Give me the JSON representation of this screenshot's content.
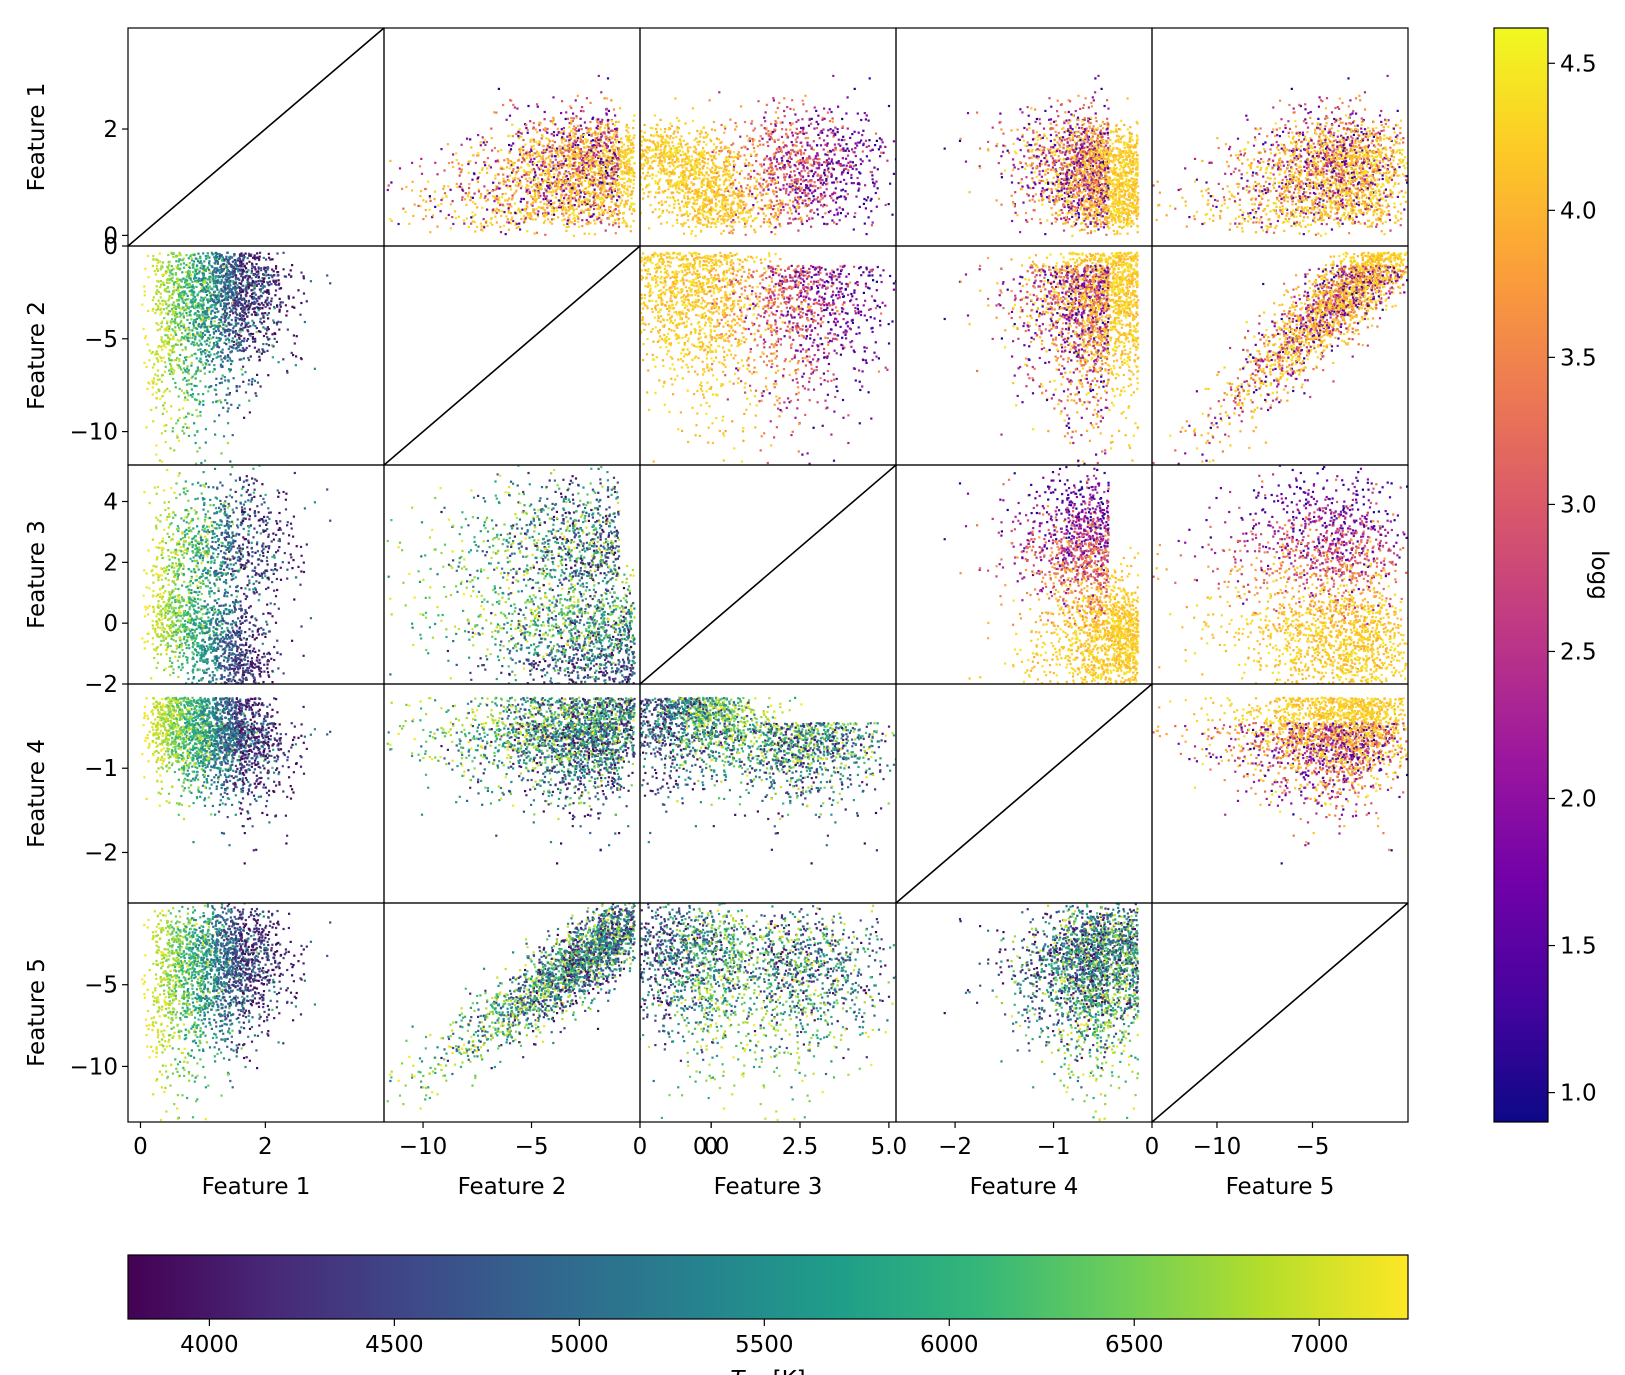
{
  "chart_data": {
    "type": "scatter",
    "subtype": "pair-plot matrix (corner plot)",
    "variables": [
      "Feature 1",
      "Feature 2",
      "Feature 3",
      "Feature 4",
      "Feature 5"
    ],
    "lower_triangle_color": "Teff",
    "upper_triangle_color": "logg",
    "diagonal": "identity line",
    "ranges": {
      "Feature 1": [
        -0.2,
        3.9
      ],
      "Feature 2": [
        -11.8,
        0.0
      ],
      "Feature 3": [
        -2.0,
        5.2
      ],
      "Feature 4": [
        -2.6,
        0.0
      ],
      "Feature 5": [
        -13.4,
        0.0
      ]
    },
    "ticks": {
      "y": {
        "Feature 1": [
          "0",
          "2"
        ],
        "Feature 2": [
          "0",
          "−5",
          "−10"
        ],
        "Feature 3": [
          "4",
          "2",
          "0",
          "−2"
        ],
        "Feature 4": [
          "−1",
          "−2"
        ],
        "Feature 5": [
          "−5",
          "−10"
        ]
      },
      "x": {
        "Feature 1": [
          "0",
          "2"
        ],
        "Feature 2": [
          "−10",
          "−5",
          "0"
        ],
        "Feature 3": [
          "0",
          "0.0",
          "2.5",
          "5.0"
        ],
        "Feature 4": [
          "0",
          "−2",
          "−1"
        ],
        "Feature 5": [
          "−10",
          "−5"
        ]
      }
    },
    "colorbar_logg": {
      "label": "logg",
      "colormap": "plasma",
      "range": [
        0.9,
        4.62
      ],
      "ticks": [
        "1.0",
        "1.5",
        "2.0",
        "2.5",
        "3.0",
        "3.5",
        "4.0",
        "4.5"
      ]
    },
    "colorbar_teff": {
      "label": "T",
      "label_sub": "eff",
      "label_unit": " [K]",
      "colormap": "viridis",
      "range": [
        3780,
        7240
      ],
      "ticks": [
        "4000",
        "4500",
        "5000",
        "5500",
        "6000",
        "6500",
        "7000"
      ]
    }
  },
  "colors": {
    "viridis": [
      "#440154",
      "#482878",
      "#3e4989",
      "#31688e",
      "#26828e",
      "#1f9e89",
      "#35b779",
      "#6ece58",
      "#b5de2b",
      "#fde725"
    ],
    "plasma": [
      "#0d0887",
      "#46039f",
      "#7201a8",
      "#9c179e",
      "#bd3786",
      "#d8576b",
      "#ed7953",
      "#fb9f3a",
      "#fdca26",
      "#f0f921"
    ]
  }
}
